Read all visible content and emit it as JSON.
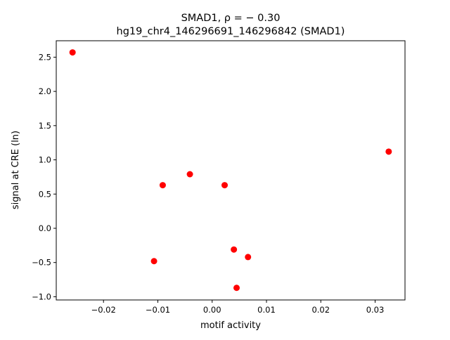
{
  "chart_data": {
    "type": "scatter",
    "title_line1": "SMAD1, ρ = − 0.30",
    "title_line2": "hg19_chr4_146296691_146296842 (SMAD1)",
    "xlabel": "motif activity",
    "ylabel": "signal at CRE (ln)",
    "xlim": [
      -0.0287,
      0.0355
    ],
    "ylim": [
      -1.047,
      2.74
    ],
    "xticks": [
      -0.02,
      -0.01,
      0.0,
      0.01,
      0.02,
      0.03
    ],
    "xtick_labels": [
      "−0.02",
      "−0.01",
      "0.00",
      "0.01",
      "0.02",
      "0.03"
    ],
    "yticks": [
      -1.0,
      -0.5,
      0.0,
      0.5,
      1.0,
      1.5,
      2.0,
      2.5
    ],
    "ytick_labels": [
      "−1.0",
      "−0.5",
      "0.0",
      "0.5",
      "1.0",
      "1.5",
      "2.0",
      "2.5"
    ],
    "grid": false,
    "marker_color": "#ff0000",
    "points": [
      {
        "x": -0.0257,
        "y": 2.57
      },
      {
        "x": -0.0091,
        "y": 0.63
      },
      {
        "x": -0.0041,
        "y": 0.79
      },
      {
        "x": 0.0023,
        "y": 0.63
      },
      {
        "x": -0.0107,
        "y": -0.48
      },
      {
        "x": 0.004,
        "y": -0.31
      },
      {
        "x": 0.0066,
        "y": -0.42
      },
      {
        "x": 0.0045,
        "y": -0.87
      },
      {
        "x": 0.0325,
        "y": 1.12
      }
    ]
  }
}
